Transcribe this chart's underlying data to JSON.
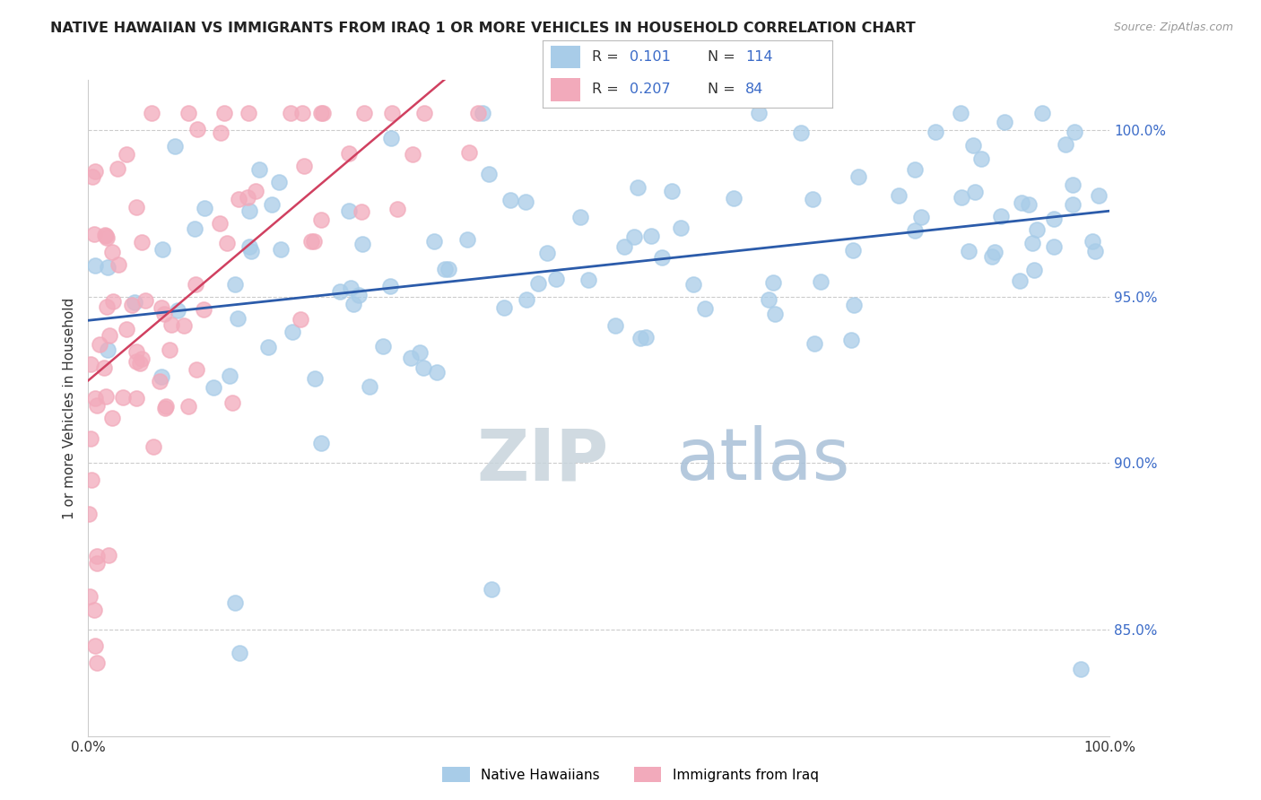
{
  "title": "NATIVE HAWAIIAN VS IMMIGRANTS FROM IRAQ 1 OR MORE VEHICLES IN HOUSEHOLD CORRELATION CHART",
  "source": "Source: ZipAtlas.com",
  "ylabel": "1 or more Vehicles in Household",
  "color_blue": "#A8CCE8",
  "color_pink": "#F2AABB",
  "color_blue_line": "#2B5BAA",
  "color_pink_line": "#D04060",
  "background_color": "#FFFFFF",
  "grid_color": "#CCCCCC",
  "ytick_values": [
    1.0,
    0.95,
    0.9,
    0.85
  ],
  "ytick_labels": [
    "100.0%",
    "95.0%",
    "90.0%",
    "85.0%"
  ],
  "xlim": [
    0.0,
    1.0
  ],
  "ylim": [
    0.818,
    1.015
  ],
  "blue_R": 0.101,
  "blue_N": 114,
  "pink_R": 0.207,
  "pink_N": 84,
  "legend_label_blue": "Native Hawaiians",
  "legend_label_pink": "Immigrants from Iraq",
  "title_fontsize": 11.5,
  "axis_label_fontsize": 11,
  "tick_color": "#3B6BC8"
}
